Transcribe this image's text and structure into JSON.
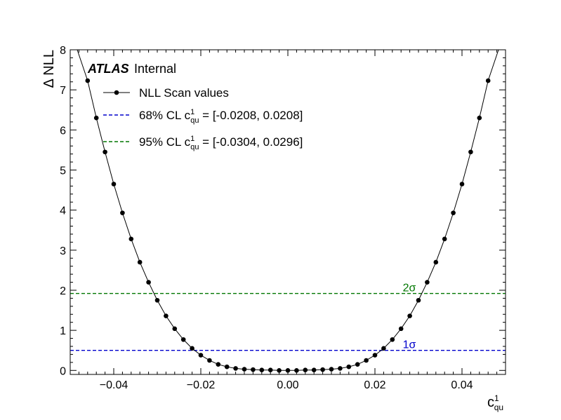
{
  "chart_data": {
    "type": "line",
    "xlim": [
      -0.05,
      0.05
    ],
    "ylim": [
      -0.1,
      8
    ],
    "x_ticks": [
      -0.04,
      -0.02,
      0.0,
      0.02,
      0.04
    ],
    "x_tick_labels": [
      "−0.04",
      "−0.02",
      "0.00",
      "0.02",
      "0.04"
    ],
    "y_ticks": [
      0,
      1,
      2,
      3,
      4,
      5,
      6,
      7,
      8
    ],
    "y_tick_labels": [
      "0",
      "1",
      "2",
      "3",
      "4",
      "5",
      "6",
      "7",
      "8"
    ],
    "xlabel": {
      "base": "c",
      "sup": "1",
      "sub": "qu"
    },
    "ylabel": "Δ NLL",
    "experiment": {
      "name": "ATLAS",
      "status": "Internal"
    },
    "series": [
      {
        "name": "NLL Scan values",
        "color": "#000000",
        "x": [
          -0.046,
          -0.044,
          -0.042,
          -0.04,
          -0.038,
          -0.036,
          -0.034,
          -0.032,
          -0.03,
          -0.028,
          -0.026,
          -0.024,
          -0.022,
          -0.02,
          -0.018,
          -0.016,
          -0.014,
          -0.012,
          -0.01,
          -0.008,
          -0.006,
          -0.004,
          -0.002,
          0.0,
          0.002,
          0.004,
          0.006,
          0.008,
          0.01,
          0.012,
          0.014,
          0.016,
          0.018,
          0.02,
          0.022,
          0.024,
          0.026,
          0.028,
          0.03,
          0.032,
          0.034,
          0.036,
          0.038,
          0.04,
          0.042,
          0.044,
          0.046
        ],
        "y": [
          7.23,
          6.3,
          5.45,
          4.65,
          3.93,
          3.28,
          2.7,
          2.2,
          1.75,
          1.36,
          1.04,
          0.77,
          0.55,
          0.38,
          0.25,
          0.15,
          0.09,
          0.05,
          0.03,
          0.02,
          0.01,
          0.01,
          0.0,
          0.0,
          0.0,
          0.01,
          0.01,
          0.02,
          0.03,
          0.05,
          0.09,
          0.15,
          0.25,
          0.38,
          0.55,
          0.77,
          1.04,
          1.36,
          1.75,
          2.2,
          2.7,
          3.28,
          3.93,
          4.65,
          5.45,
          6.3,
          7.23
        ],
        "curve_extent_y": 8
      }
    ],
    "reference_lines": [
      {
        "name": "68% CL",
        "y": 0.5,
        "color": "#0000cc",
        "label": "1σ",
        "interval": "[-0.0208, 0.0208]"
      },
      {
        "name": "95% CL",
        "y": 1.92,
        "color": "#007700",
        "label": "2σ",
        "interval": "[-0.0304, 0.0296]"
      }
    ],
    "legend": {
      "placement": "top-left",
      "entries": [
        {
          "prefix": "NLL Scan values",
          "has_coeff": false,
          "suffix": ""
        },
        {
          "prefix": "68% CL ",
          "has_coeff": true,
          "suffix": " = [-0.0208, 0.0208]"
        },
        {
          "prefix": "95% CL ",
          "has_coeff": true,
          "suffix": " = [-0.0304, 0.0296]"
        }
      ],
      "coeff": {
        "base": "c",
        "sup": "1",
        "sub": "qu"
      }
    },
    "grid": false
  }
}
